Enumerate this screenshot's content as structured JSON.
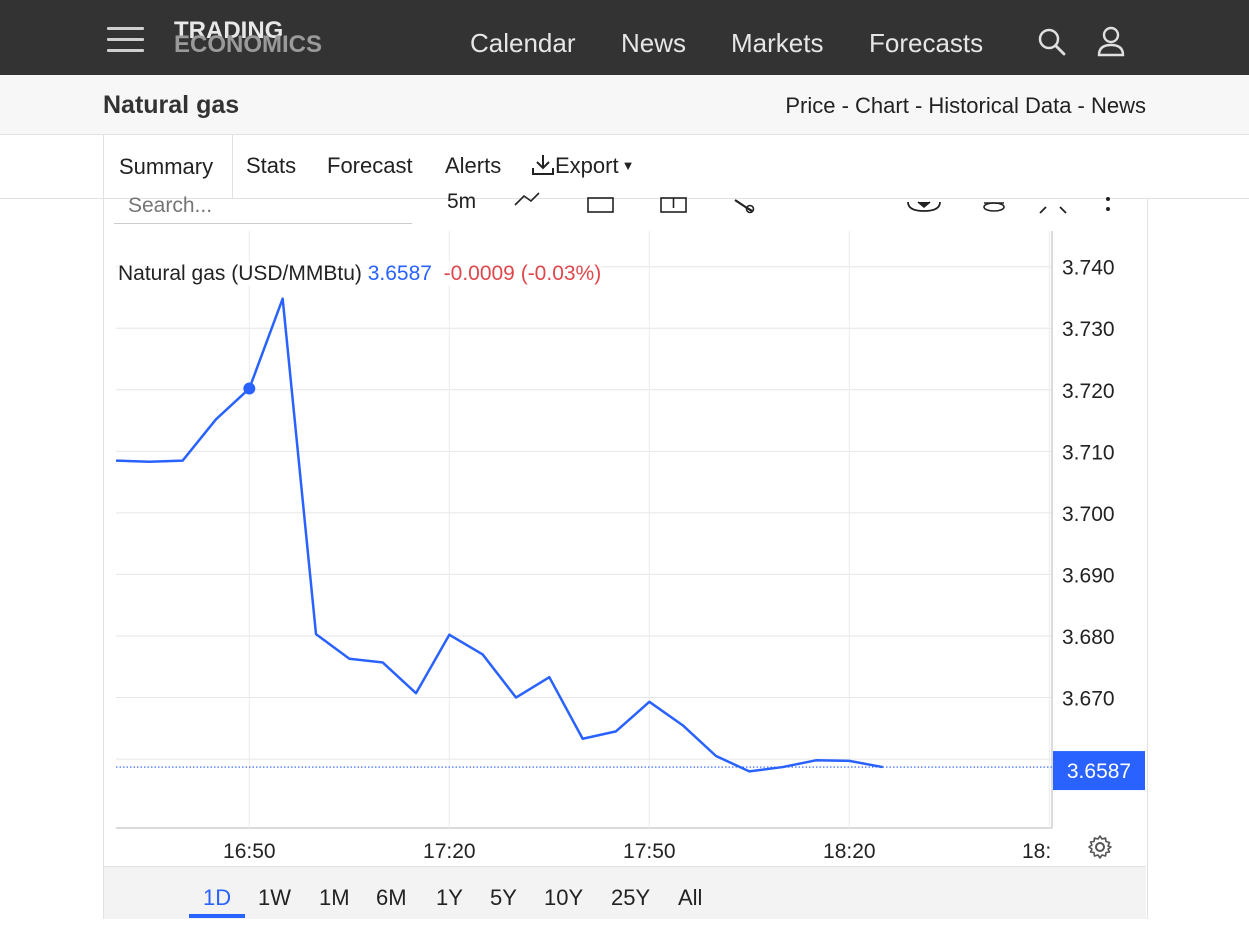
{
  "header": {
    "logo_line1": "TRADING",
    "logo_line2": "ECONOMICS",
    "nav": [
      "Calendar",
      "News",
      "Markets",
      "Forecasts"
    ]
  },
  "subheader": {
    "title": "Natural gas",
    "links": "Price - Chart - Historical Data - News"
  },
  "tabs": {
    "summary": "Summary",
    "stats": "Stats",
    "forecast": "Forecast",
    "alerts": "Alerts",
    "export": "Export"
  },
  "toolbar": {
    "search_placeholder": "Search...",
    "interval": "5m"
  },
  "legend": {
    "name": "Natural gas (USD/MMBtu)",
    "value": "3.6587",
    "change": "-0.0009 (-0.03%)"
  },
  "ranges": [
    "1D",
    "1W",
    "1M",
    "6M",
    "1Y",
    "5Y",
    "10Y",
    "25Y",
    "All"
  ],
  "colors": {
    "line": "#2962ff",
    "negative": "#e0474c",
    "topbar": "#333333"
  },
  "chart_data": {
    "type": "line",
    "title": "Natural gas (USD/MMBtu)",
    "xlabel": "",
    "ylabel": "",
    "x": [
      "16:30",
      "16:35",
      "16:40",
      "16:45",
      "16:50",
      "16:55",
      "17:00",
      "17:05",
      "17:10",
      "17:15",
      "17:20",
      "17:25",
      "17:30",
      "17:35",
      "17:40",
      "17:45",
      "17:50",
      "17:55",
      "18:00",
      "18:05",
      "18:10",
      "18:15",
      "18:20",
      "18:25"
    ],
    "series": [
      {
        "values": [
          3.7085,
          3.7083,
          3.7085,
          3.7152,
          3.7202,
          3.7348,
          3.6803,
          3.6763,
          3.6757,
          3.6707,
          3.6802,
          3.677,
          3.67,
          3.6733,
          3.6633,
          3.6645,
          3.6693,
          3.6655,
          3.6605,
          3.658,
          3.6587,
          3.6598,
          3.6597,
          3.6587
        ]
      }
    ],
    "x_ticks": [
      "16:50",
      "17:20",
      "17:50",
      "18:20",
      "18:"
    ],
    "y_ticks": [
      "3.740",
      "3.730",
      "3.720",
      "3.710",
      "3.700",
      "3.690",
      "3.680",
      "3.670"
    ],
    "ylim": [
      3.6488,
      3.7458
    ],
    "last_value": "3.6587",
    "grid": true,
    "legend": "top-left"
  }
}
